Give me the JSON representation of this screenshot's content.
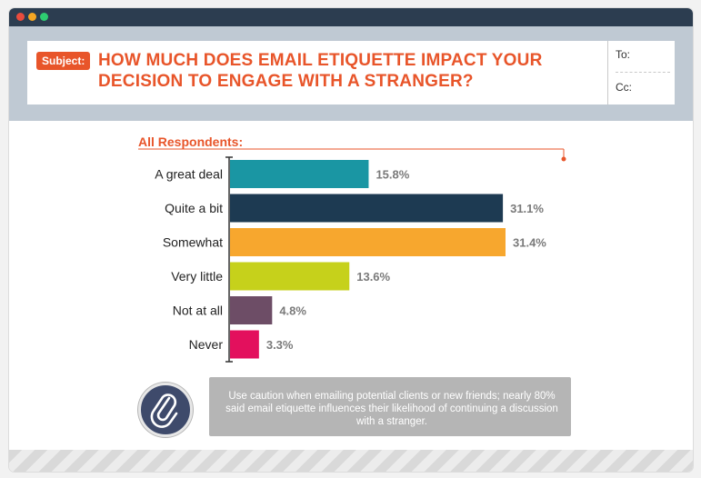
{
  "window": {
    "controls": [
      "close-dot",
      "minimize-dot",
      "maximize-dot"
    ]
  },
  "email": {
    "subject_label": "Subject:",
    "subject_line1": "HOW MUCH DOES EMAIL ETIQUETTE IMPACT YOUR",
    "subject_line2": "DECISION TO ENGAGE WITH A STRANGER?",
    "to_label": "To:",
    "cc_label": "Cc:"
  },
  "colors": {
    "accent": "#e8552a",
    "header_bg": "#bfc9d3",
    "titlebar": "#2c3d50"
  },
  "chart_data": {
    "type": "bar",
    "orientation": "horizontal",
    "title": "All Respondents:",
    "categories": [
      "A great deal",
      "Quite a bit",
      "Somewhat",
      "Very little",
      "Not at all",
      "Never"
    ],
    "values": [
      15.8,
      31.1,
      31.4,
      13.6,
      4.8,
      3.3
    ],
    "value_labels": [
      "15.8%",
      "31.1%",
      "31.4%",
      "13.6%",
      "4.8%",
      "3.3%"
    ],
    "colors": [
      "#1a96a3",
      "#1d3a52",
      "#f7a72e",
      "#c6d11b",
      "#6d4d66",
      "#e3105d"
    ],
    "xlim": [
      0,
      31.4
    ],
    "xlabel": "",
    "ylabel": "",
    "grid": false,
    "legend": "none"
  },
  "note": {
    "icon": "paperclip-icon",
    "text": "Use caution when emailing potential clients or new friends; nearly 80% said email etiquette influences their likelihood of continuing a discussion with a stranger."
  }
}
